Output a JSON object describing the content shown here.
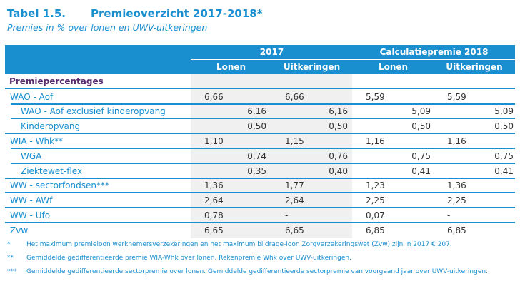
{
  "title": {
    "number": "Tabel 1.5.",
    "text": "Premieoverzicht 2017-2018*"
  },
  "subtitle": "Premies in % over lonen en UWV-uitkeringen",
  "colors": {
    "accent": "#1a8fd0",
    "section": "#5b2d6e",
    "band": "#f0f0f0",
    "value": "#333333"
  },
  "header": {
    "group_2017": "2017",
    "group_2018": "Calculatiepremie 2018",
    "col_2017_lonen": "Lonen",
    "col_2017_uitk": "Uitkeringen",
    "col_2018_lonen": "Lonen",
    "col_2018_uitk": "Uitkeringen"
  },
  "section_label": "Premiepercentages",
  "rows": [
    {
      "label": "WAO - Aof",
      "sub": false,
      "v": [
        "6,66",
        "6,66",
        "5,59",
        "5,59"
      ]
    },
    {
      "label": "WAO - Aof exclusief kinderopvang",
      "sub": true,
      "v": [
        "6,16",
        "6,16",
        "5,09",
        "5,09"
      ]
    },
    {
      "label": "Kinderopvang",
      "sub": true,
      "v": [
        "0,50",
        "0,50",
        "0,50",
        "0,50"
      ]
    },
    {
      "label": "WIA - Whk**",
      "sub": false,
      "v": [
        "1,10",
        "1,15",
        "1,16",
        "1,16"
      ]
    },
    {
      "label": "WGA",
      "sub": true,
      "v": [
        "0,74",
        "0,76",
        "0,75",
        "0,75"
      ]
    },
    {
      "label": "Ziektewet-flex",
      "sub": true,
      "v": [
        "0,35",
        "0,40",
        "0,41",
        "0,41"
      ]
    },
    {
      "label": "WW - sectorfondsen***",
      "sub": false,
      "v": [
        "1,36",
        "1,77",
        "1,23",
        "1,36"
      ]
    },
    {
      "label": "WW - AWf",
      "sub": false,
      "v": [
        "2,64",
        "2,64",
        "2,25",
        "2,25"
      ]
    },
    {
      "label": "WW - Ufo",
      "sub": false,
      "v": [
        "0,78",
        "-",
        "0,07",
        "-"
      ]
    },
    {
      "label": "Zvw",
      "sub": false,
      "v": [
        "6,65",
        "6,65",
        "6,85",
        "6,85"
      ]
    }
  ],
  "footnotes": [
    {
      "mark": "*",
      "text": "Het maximum premieloon werknemersverzekeringen en het maximum bijdrage-loon Zorgverzekeringswet (Zvw) zijn in 2017 € 207."
    },
    {
      "mark": "**",
      "text": "Gemiddelde gedifferentieerde premie WIA-Whk over lonen. Rekenpremie Whk over UWV-uitkeringen."
    },
    {
      "mark": "***",
      "text": "Gemiddelde gedifferentieerde sectorpremie over lonen. Gemiddelde gedifferentieerde sectorpremie van voorgaand jaar over UWV-uitkeringen."
    }
  ]
}
